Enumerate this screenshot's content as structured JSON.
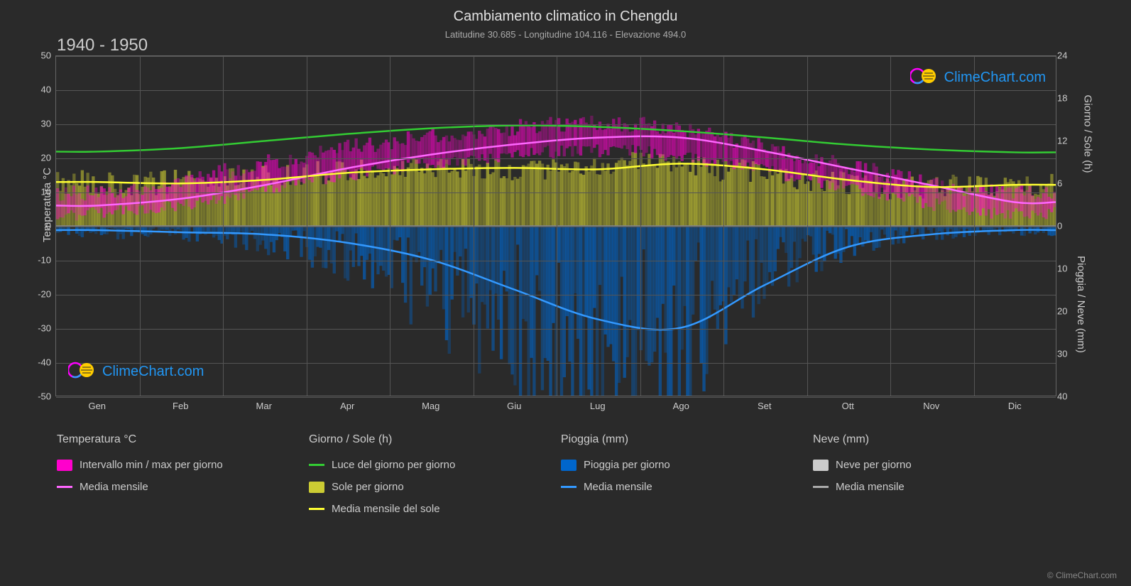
{
  "title": "Cambiamento climatico in Chengdu",
  "subtitle": "Latitudine 30.685 - Longitudine 104.116 - Elevazione 494.0",
  "period": "1940 - 1950",
  "watermark_text": "ClimeChart.com",
  "copyright": "© ClimeChart.com",
  "background_color": "#2a2a2a",
  "grid_color": "#555555",
  "text_color": "#cccccc",
  "y_left": {
    "label": "Temperatura °C",
    "min": -50,
    "max": 50,
    "step": 10,
    "ticks": [
      50,
      40,
      30,
      20,
      10,
      0,
      -10,
      -20,
      -30,
      -40,
      -50
    ]
  },
  "y_right_top": {
    "label": "Giorno / Sole (h)",
    "min": 0,
    "max": 24,
    "ticks": [
      24,
      18,
      12,
      6,
      0
    ]
  },
  "y_right_bottom": {
    "label": "Pioggia / Neve (mm)",
    "min": 0,
    "max": 40,
    "ticks": [
      0,
      10,
      20,
      30,
      40
    ]
  },
  "x": {
    "months": [
      "Gen",
      "Feb",
      "Mar",
      "Apr",
      "Mag",
      "Giu",
      "Lug",
      "Ago",
      "Set",
      "Ott",
      "Nov",
      "Dic"
    ]
  },
  "series": {
    "daylight": {
      "color": "#33cc33",
      "values_h": [
        10.5,
        11.0,
        12.0,
        13.0,
        13.8,
        14.2,
        14.0,
        13.4,
        12.5,
        11.5,
        10.8,
        10.4
      ]
    },
    "temp_mean": {
      "color": "#ff66ff",
      "values_c": [
        6,
        8,
        12,
        17,
        21,
        24,
        26,
        26,
        22,
        17,
        12,
        7
      ]
    },
    "temp_min": {
      "color": "#ff33cc",
      "values_c": [
        3,
        5,
        8,
        13,
        17,
        20,
        22,
        22,
        18,
        14,
        9,
        4
      ]
    },
    "temp_max": {
      "color": "#ff33cc",
      "values_c": [
        9,
        11,
        16,
        21,
        25,
        28,
        30,
        30,
        26,
        20,
        15,
        10
      ]
    },
    "sun_mean": {
      "color": "#ffff33",
      "values_h": [
        6.2,
        6.0,
        6.5,
        7.5,
        8.0,
        8.2,
        8.0,
        8.8,
        8.0,
        6.5,
        5.5,
        5.8
      ]
    },
    "rain_mean": {
      "color": "#3399ff",
      "values_mm": [
        1,
        1.5,
        2,
        4,
        8,
        15,
        22,
        24,
        14,
        5,
        2,
        1
      ]
    }
  },
  "legend": {
    "col1": {
      "header": "Temperatura °C",
      "items": [
        {
          "type": "swatch",
          "color": "#ff00cc",
          "label": "Intervallo min / max per giorno"
        },
        {
          "type": "line",
          "color": "#ff66ff",
          "label": "Media mensile"
        }
      ]
    },
    "col2": {
      "header": "Giorno / Sole (h)",
      "items": [
        {
          "type": "line",
          "color": "#33cc33",
          "label": "Luce del giorno per giorno"
        },
        {
          "type": "swatch",
          "color": "#cccc33",
          "label": "Sole per giorno"
        },
        {
          "type": "line",
          "color": "#ffff33",
          "label": "Media mensile del sole"
        }
      ]
    },
    "col3": {
      "header": "Pioggia (mm)",
      "items": [
        {
          "type": "swatch",
          "color": "#0066cc",
          "label": "Pioggia per giorno"
        },
        {
          "type": "line",
          "color": "#3399ff",
          "label": "Media mensile"
        }
      ]
    },
    "col4": {
      "header": "Neve (mm)",
      "items": [
        {
          "type": "swatch",
          "color": "#cccccc",
          "label": "Neve per giorno"
        },
        {
          "type": "line",
          "color": "#aaaaaa",
          "label": "Media mensile"
        }
      ]
    }
  },
  "daily_bars": {
    "temp_range_color": "#ff00cc",
    "sun_color": "#cccc33",
    "rain_color": "#0066cc"
  }
}
